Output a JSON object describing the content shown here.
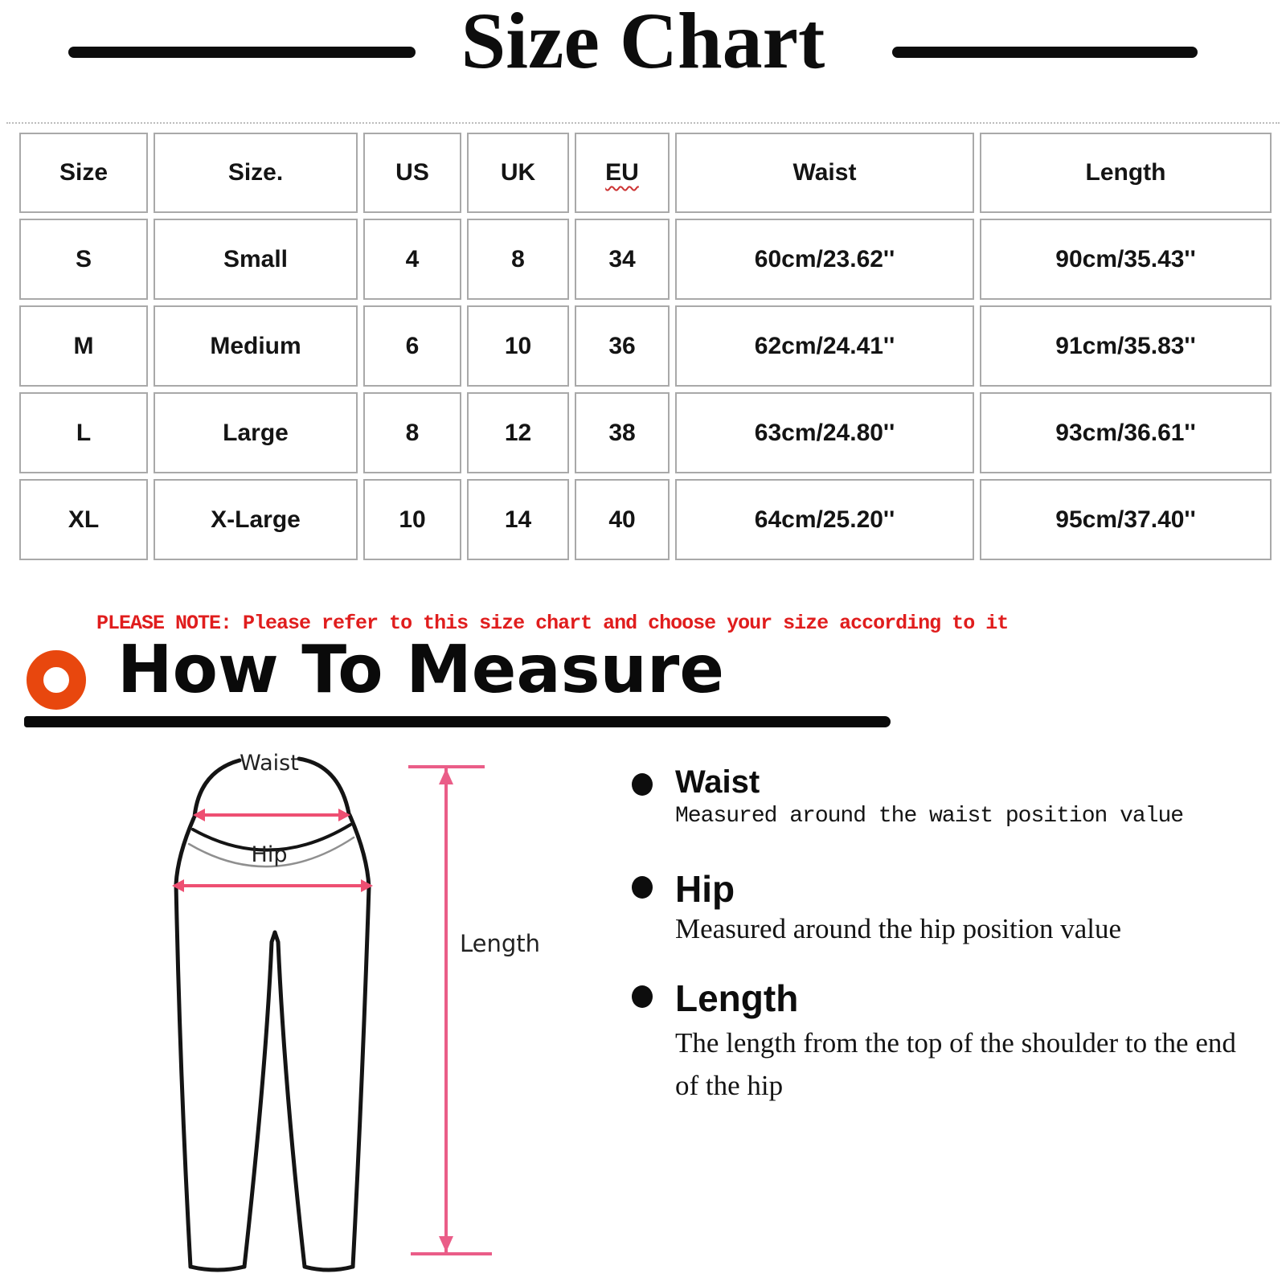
{
  "title": "Size Chart",
  "size_table": {
    "columns": [
      "Size",
      "Size.",
      "US",
      "UK",
      "EU",
      "Waist",
      "Length"
    ],
    "rows": [
      [
        "S",
        "Small",
        "4",
        "8",
        "34",
        "60cm/23.62''",
        "90cm/35.43''"
      ],
      [
        "M",
        "Medium",
        "6",
        "10",
        "36",
        "62cm/24.41''",
        "91cm/35.83''"
      ],
      [
        "L",
        "Large",
        "8",
        "12",
        "38",
        "63cm/24.80''",
        "93cm/36.61''"
      ],
      [
        "XL",
        "X-Large",
        "10",
        "14",
        "40",
        "64cm/25.20''",
        "95cm/37.40''"
      ]
    ]
  },
  "note": "PLEASE NOTE: Please refer to this size chart and choose your size according to it",
  "how_to_measure": {
    "heading": "How To Measure",
    "icon": "orange-ring-icon",
    "items": [
      {
        "label": "Waist",
        "description": "Measured around the waist position value"
      },
      {
        "label": "Hip",
        "description": "Measured around the  hip position value"
      },
      {
        "label": "Length",
        "description": "The length from the top of the shoulder to the end of the hip"
      }
    ]
  },
  "diagram": {
    "labels": {
      "waist": "Waist",
      "hip": "Hip",
      "length": "Length"
    }
  },
  "colors": {
    "note_red": "#e01d1d",
    "accent_orange": "#e8470e",
    "measure_pink": "#eb547f",
    "table_border": "#a9a9a9"
  }
}
